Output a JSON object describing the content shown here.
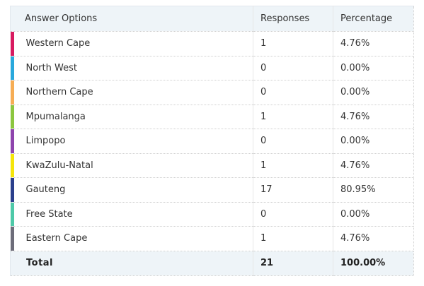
{
  "table": {
    "headers": {
      "answer": "Answer Options",
      "responses": "Responses",
      "percentage": "Percentage"
    },
    "rows": [
      {
        "option": "Western Cape",
        "responses": "1",
        "percentage": "4.76%",
        "color": "#d81b60"
      },
      {
        "option": "North West",
        "responses": "0",
        "percentage": "0.00%",
        "color": "#29a8dc"
      },
      {
        "option": "Northern Cape",
        "responses": "0",
        "percentage": "0.00%",
        "color": "#f6ad55"
      },
      {
        "option": "Mpumalanga",
        "responses": "1",
        "percentage": "4.76%",
        "color": "#8cc63f"
      },
      {
        "option": "Limpopo",
        "responses": "0",
        "percentage": "0.00%",
        "color": "#8e44ad"
      },
      {
        "option": "KwaZulu-Natal",
        "responses": "1",
        "percentage": "4.76%",
        "color": "#f5e50a"
      },
      {
        "option": "Gauteng",
        "responses": "17",
        "percentage": "80.95%",
        "color": "#2b3f8c"
      },
      {
        "option": "Free State",
        "responses": "0",
        "percentage": "0.00%",
        "color": "#4ec9a8"
      },
      {
        "option": "Eastern Cape",
        "responses": "1",
        "percentage": "4.76%",
        "color": "#6d6d7a"
      }
    ],
    "total": {
      "label": "Total",
      "responses": "21",
      "percentage": "100.00%"
    }
  }
}
